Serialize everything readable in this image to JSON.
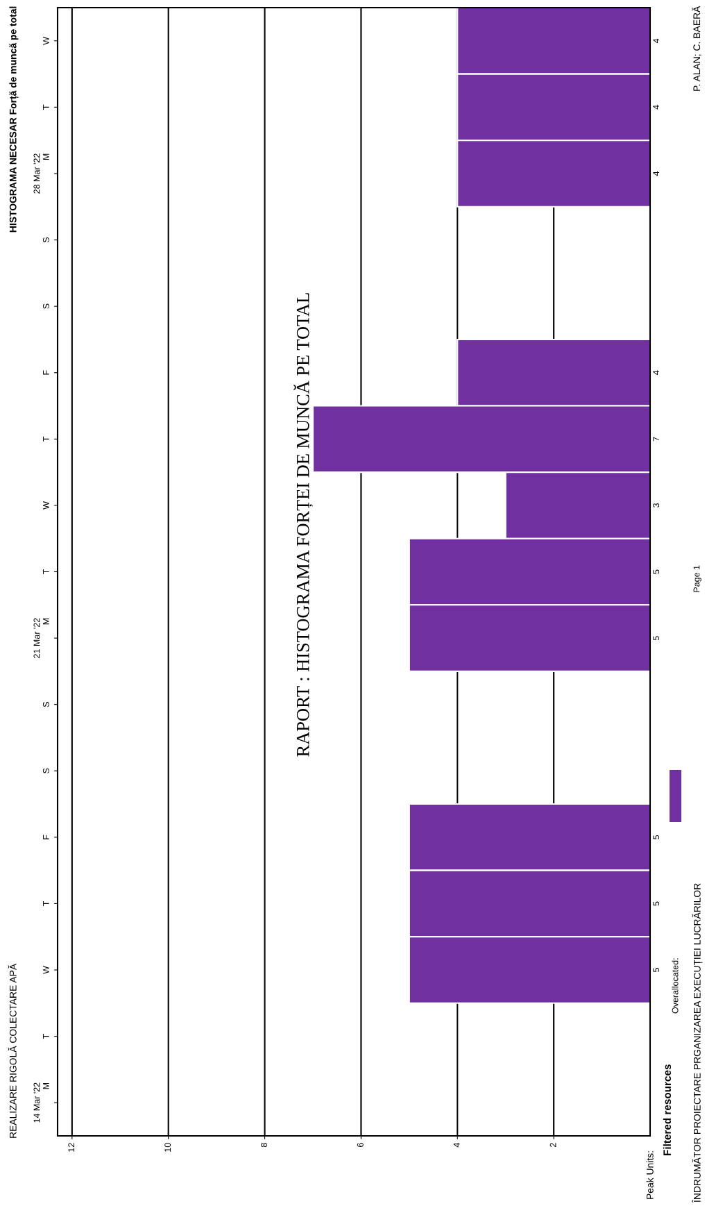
{
  "chart_data": {
    "type": "bar",
    "orientation": "horizontal",
    "title": "HISTOGRAMA NECESAR Forță de muncă pe total",
    "subtitle": "REALIZARE RIGOLĂ COLECTARE APĂ",
    "categories": [
      "W",
      "T",
      "28 Mar '22\nM",
      "S",
      "S",
      "F",
      "T",
      "W",
      "T",
      "21 Mar '22\nM",
      "S",
      "S",
      "F",
      "T",
      "W",
      "T",
      "14 Mar '22\nM"
    ],
    "series": [
      {
        "name": "Overallocated:",
        "color": "#7030a0",
        "values": [
          4,
          4,
          4,
          null,
          null,
          4,
          7,
          3,
          5,
          5,
          null,
          null,
          5,
          5,
          5,
          null,
          null
        ]
      }
    ],
    "legend_title": "Filtered resources",
    "legend": "bottom right",
    "xlim": [
      12.3,
      0
    ],
    "xticks": [
      12,
      10,
      8,
      6,
      4,
      2
    ],
    "grid": "x",
    "data_labels": true,
    "annotations": [
      "RAPORT : HISTOGRAMA FORȚEI DE MUNCĂ PE TOTAL",
      "Peak Units:",
      "ÎNDRUMĂTOR PROIECTARE PRGANIZAREA EXECUȚIEI LUCRĂRILOR",
      "Page 1",
      "P. ALAN; C. BAERĂ"
    ]
  }
}
